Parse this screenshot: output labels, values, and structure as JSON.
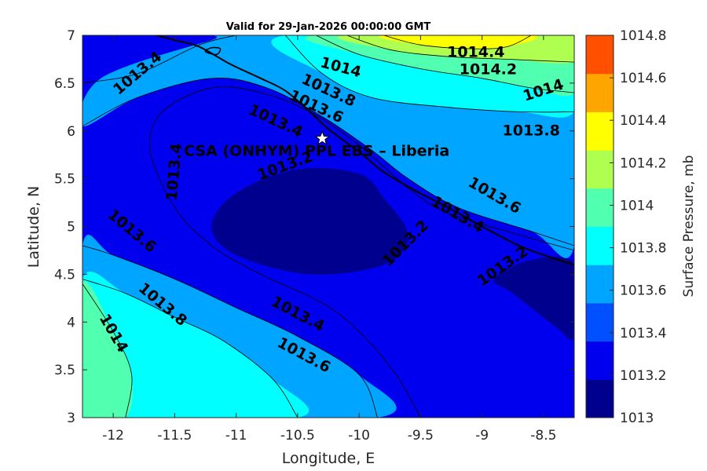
{
  "chart_data": {
    "type": "contour",
    "title": "Valid for 29-Jan-2026 00:00:00 GMT",
    "xlabel": "Longitude, E",
    "ylabel": "Latitude, N",
    "xlim": [
      -12.25,
      -8.25
    ],
    "ylim": [
      3,
      7
    ],
    "xticks": [
      -12,
      -11.5,
      -11,
      -10.5,
      -10,
      -9.5,
      -9,
      -8.5
    ],
    "xtick_labels": [
      "-12",
      "-11.5",
      "-11",
      "-10.5",
      "-10",
      "-9.5",
      "-9",
      "-8.5"
    ],
    "yticks": [
      3,
      3.5,
      4,
      4.5,
      5,
      5.5,
      6,
      6.5,
      7
    ],
    "ytick_labels": [
      "3",
      "3.5",
      "4",
      "4.5",
      "5",
      "5.5",
      "6",
      "6.5",
      "7"
    ],
    "colorbar": {
      "label": "Surface Pressure, mb",
      "range": [
        1013,
        1014.8
      ],
      "ticks": [
        1013,
        1013.2,
        1013.4,
        1013.6,
        1013.8,
        1014,
        1014.2,
        1014.4,
        1014.6,
        1014.8
      ],
      "tick_labels": [
        "1013",
        "1013.2",
        "1013.4",
        "1013.6",
        "1013.8",
        "1014",
        "1014.2",
        "1014.4",
        "1014.6",
        "1014.8"
      ],
      "colors": [
        "#00008f",
        "#0000ef",
        "#0050ff",
        "#00a5ff",
        "#00ffff",
        "#50ffaf",
        "#afff50",
        "#ffff00",
        "#ffa500",
        "#ff5000"
      ]
    },
    "contour_levels": [
      {
        "level": 1013.2,
        "fill": "#00008f",
        "polygons": [
          [
            [
              -11.2,
              5.0
            ],
            [
              -11.0,
              5.35
            ],
            [
              -10.5,
              5.6
            ],
            [
              -10.0,
              5.55
            ],
            [
              -9.8,
              5.3
            ],
            [
              -9.6,
              4.9
            ],
            [
              -9.8,
              4.6
            ],
            [
              -10.4,
              4.5
            ],
            [
              -11.0,
              4.7
            ]
          ],
          [
            [
              -8.75,
              4.3
            ],
            [
              -8.9,
              4.45
            ],
            [
              -8.6,
              4.65
            ],
            [
              -8.25,
              4.6
            ],
            [
              -8.25,
              3.85
            ],
            [
              -8.4,
              3.95
            ]
          ]
        ]
      },
      {
        "level": 1013.6,
        "fill": "#00a5ff",
        "polygons": [
          [
            [
              -12.25,
              4.8
            ],
            [
              -12.0,
              4.7
            ],
            [
              -11.5,
              4.45
            ],
            [
              -11.0,
              4.15
            ],
            [
              -10.5,
              3.85
            ],
            [
              -10.0,
              3.45
            ],
            [
              -9.85,
              3.0
            ],
            [
              -12.25,
              3.0
            ]
          ],
          [
            [
              -12.25,
              6.05
            ],
            [
              -12.1,
              6.55
            ],
            [
              -11.2,
              6.95
            ],
            [
              -11.0,
              7.0
            ],
            [
              -8.25,
              7.0
            ],
            [
              -8.25,
              4.8
            ],
            [
              -8.6,
              4.95
            ],
            [
              -9.2,
              5.2
            ],
            [
              -9.6,
              5.5
            ],
            [
              -9.9,
              5.8
            ],
            [
              -10.3,
              6.15
            ],
            [
              -10.75,
              6.45
            ],
            [
              -11.2,
              6.55
            ],
            [
              -11.8,
              6.35
            ]
          ]
        ]
      },
      {
        "level": 1013.8,
        "fill": "#00ffff",
        "polygons": [
          [
            [
              -12.25,
              4.45
            ],
            [
              -11.9,
              4.3
            ],
            [
              -11.5,
              4.05
            ],
            [
              -11.1,
              3.8
            ],
            [
              -10.7,
              3.4
            ],
            [
              -10.5,
              3.0
            ],
            [
              -12.25,
              3.0
            ]
          ],
          [
            [
              -10.6,
              7.0
            ],
            [
              -10.3,
              6.6
            ],
            [
              -9.9,
              6.35
            ],
            [
              -9.3,
              6.25
            ],
            [
              -8.7,
              6.2
            ],
            [
              -8.25,
              6.2
            ],
            [
              -8.25,
              7.0
            ]
          ]
        ]
      },
      {
        "level": 1014.0,
        "fill": "#50ffaf",
        "polygons": [
          [
            [
              -12.25,
              4.4
            ],
            [
              -12.0,
              3.9
            ],
            [
              -11.85,
              3.45
            ],
            [
              -11.9,
              3.0
            ],
            [
              -12.25,
              3.0
            ]
          ],
          [
            [
              -10.35,
              7.0
            ],
            [
              -10.0,
              6.8
            ],
            [
              -9.5,
              6.65
            ],
            [
              -9.0,
              6.55
            ],
            [
              -8.6,
              6.45
            ],
            [
              -8.25,
              6.4
            ],
            [
              -8.25,
              7.0
            ]
          ]
        ]
      },
      {
        "level": 1014.2,
        "fill": "#afff50",
        "polygons": [
          [
            [
              -10.1,
              7.0
            ],
            [
              -9.75,
              6.85
            ],
            [
              -9.3,
              6.78
            ],
            [
              -8.8,
              6.75
            ],
            [
              -8.25,
              6.72
            ],
            [
              -8.25,
              7.0
            ]
          ]
        ]
      },
      {
        "level": 1014.4,
        "fill": "#ffff00",
        "polygons": [
          [
            [
              -9.8,
              7.0
            ],
            [
              -9.5,
              6.9
            ],
            [
              -9.1,
              6.86
            ],
            [
              -8.8,
              6.88
            ],
            [
              -8.6,
              7.0
            ]
          ]
        ]
      }
    ],
    "contour_lines": [
      {
        "label": "1013.4",
        "points": [
          [
            -12.25,
            6.5
          ],
          [
            -11.8,
            6.6
          ],
          [
            -11.3,
            6.9
          ],
          [
            -11.0,
            7.0
          ]
        ]
      },
      {
        "label": "1013.4",
        "points": [
          [
            -8.25,
            4.75
          ],
          [
            -8.8,
            4.95
          ],
          [
            -9.3,
            5.15
          ],
          [
            -9.6,
            5.4
          ],
          [
            -10.0,
            5.85
          ],
          [
            -10.4,
            6.2
          ],
          [
            -10.8,
            6.4
          ],
          [
            -11.2,
            6.45
          ],
          [
            -11.6,
            6.2
          ],
          [
            -11.7,
            5.8
          ],
          [
            -11.5,
            5.2
          ],
          [
            -11.2,
            4.8
          ],
          [
            -10.8,
            4.5
          ],
          [
            -10.3,
            4.2
          ],
          [
            -10.0,
            3.9
          ],
          [
            -9.7,
            3.45
          ],
          [
            -9.5,
            3.0
          ]
        ]
      },
      {
        "label": "1013.6",
        "points": [
          [
            -12.25,
            4.8
          ],
          [
            -12.0,
            4.7
          ],
          [
            -11.5,
            4.45
          ],
          [
            -11.0,
            4.15
          ],
          [
            -10.5,
            3.85
          ],
          [
            -10.0,
            3.45
          ],
          [
            -9.85,
            3.0
          ]
        ]
      },
      {
        "label": "1013.6",
        "points": [
          [
            -8.25,
            4.8
          ],
          [
            -8.6,
            4.95
          ],
          [
            -9.2,
            5.2
          ],
          [
            -9.6,
            5.5
          ],
          [
            -9.9,
            5.8
          ],
          [
            -10.3,
            6.15
          ],
          [
            -10.75,
            6.45
          ],
          [
            -11.2,
            6.55
          ],
          [
            -11.8,
            6.35
          ],
          [
            -12.25,
            6.05
          ]
        ]
      },
      {
        "label": "1013.8",
        "points": [
          [
            -12.25,
            4.45
          ],
          [
            -11.9,
            4.3
          ],
          [
            -11.5,
            4.05
          ],
          [
            -11.1,
            3.8
          ],
          [
            -10.7,
            3.4
          ],
          [
            -10.5,
            3.0
          ]
        ]
      },
      {
        "label": "1013.8",
        "points": [
          [
            -10.6,
            7.0
          ],
          [
            -10.3,
            6.6
          ],
          [
            -9.9,
            6.35
          ],
          [
            -9.3,
            6.25
          ],
          [
            -8.7,
            6.2
          ],
          [
            -8.25,
            6.2
          ]
        ]
      },
      {
        "label": "1014",
        "points": [
          [
            -12.25,
            4.4
          ],
          [
            -12.0,
            3.9
          ],
          [
            -11.85,
            3.45
          ],
          [
            -11.9,
            3.0
          ]
        ]
      },
      {
        "label": "1014",
        "points": [
          [
            -10.35,
            7.0
          ],
          [
            -10.0,
            6.8
          ],
          [
            -9.5,
            6.65
          ],
          [
            -9.0,
            6.55
          ],
          [
            -8.6,
            6.45
          ],
          [
            -8.25,
            6.4
          ]
        ]
      },
      {
        "label": "1014.2",
        "points": [
          [
            -10.1,
            7.0
          ],
          [
            -9.75,
            6.85
          ],
          [
            -9.3,
            6.78
          ],
          [
            -8.8,
            6.75
          ],
          [
            -8.25,
            6.72
          ]
        ]
      },
      {
        "label": "1014.4",
        "points": [
          [
            -9.8,
            7.0
          ],
          [
            -9.5,
            6.9
          ],
          [
            -9.1,
            6.86
          ],
          [
            -8.8,
            6.88
          ],
          [
            -8.6,
            7.0
          ]
        ]
      }
    ],
    "contour_labels": [
      {
        "text": "1013.4",
        "x": -11.8,
        "y": 6.6,
        "angle": -40
      },
      {
        "text": "1014",
        "x": -10.15,
        "y": 6.66,
        "angle": 15
      },
      {
        "text": "1013.8",
        "x": -10.25,
        "y": 6.42,
        "angle": 25
      },
      {
        "text": "1013.6",
        "x": -10.35,
        "y": 6.25,
        "angle": 25
      },
      {
        "text": "1013.4",
        "x": -10.68,
        "y": 6.1,
        "angle": 25
      },
      {
        "text": "1014.4",
        "x": -9.05,
        "y": 6.82,
        "angle": 0
      },
      {
        "text": "1014.2",
        "x": -8.95,
        "y": 6.64,
        "angle": 0
      },
      {
        "text": "1014",
        "x": -8.5,
        "y": 6.42,
        "angle": -18
      },
      {
        "text": "1013.8",
        "x": -8.6,
        "y": 6.0,
        "angle": 0
      },
      {
        "text": "1013.4",
        "x": -11.5,
        "y": 5.57,
        "angle": -85
      },
      {
        "text": "1013.2",
        "x": -10.6,
        "y": 5.63,
        "angle": -20
      },
      {
        "text": "1013.6",
        "x": -8.9,
        "y": 5.32,
        "angle": 30
      },
      {
        "text": "1013.4",
        "x": -9.2,
        "y": 5.12,
        "angle": 30
      },
      {
        "text": "1013.6",
        "x": -11.85,
        "y": 4.95,
        "angle": 40
      },
      {
        "text": "1013.2",
        "x": -9.62,
        "y": 4.82,
        "angle": -45
      },
      {
        "text": "1013.2",
        "x": -8.83,
        "y": 4.58,
        "angle": -35
      },
      {
        "text": "1013.8",
        "x": -11.6,
        "y": 4.18,
        "angle": 40
      },
      {
        "text": "1013.4",
        "x": -10.5,
        "y": 4.08,
        "angle": 28
      },
      {
        "text": "1013.6",
        "x": -10.45,
        "y": 3.65,
        "angle": 28
      },
      {
        "text": "1014",
        "x": -12.0,
        "y": 3.88,
        "angle": 60
      }
    ],
    "coastline": [
      [
        -11.65,
        7.0
      ],
      [
        -11.5,
        6.95
      ],
      [
        -11.3,
        6.88
      ],
      [
        -11.05,
        6.7
      ],
      [
        -10.8,
        6.55
      ],
      [
        -10.6,
        6.42
      ],
      [
        -10.4,
        6.2
      ],
      [
        -10.25,
        6.02
      ],
      [
        -10.0,
        5.78
      ],
      [
        -9.8,
        5.57
      ],
      [
        -9.55,
        5.38
      ],
      [
        -9.25,
        5.18
      ],
      [
        -9.0,
        5.0
      ],
      [
        -8.7,
        4.8
      ],
      [
        -8.45,
        4.68
      ],
      [
        -8.25,
        4.6
      ]
    ],
    "island": [
      [
        -11.25,
        6.83
      ],
      [
        -11.2,
        6.87
      ],
      [
        -11.13,
        6.86
      ],
      [
        -11.16,
        6.8
      ]
    ],
    "site": {
      "label": "CSA (ONHYM) PPL EBS  – Liberia",
      "lon": -10.3,
      "lat": 5.92,
      "marker": "star"
    }
  }
}
